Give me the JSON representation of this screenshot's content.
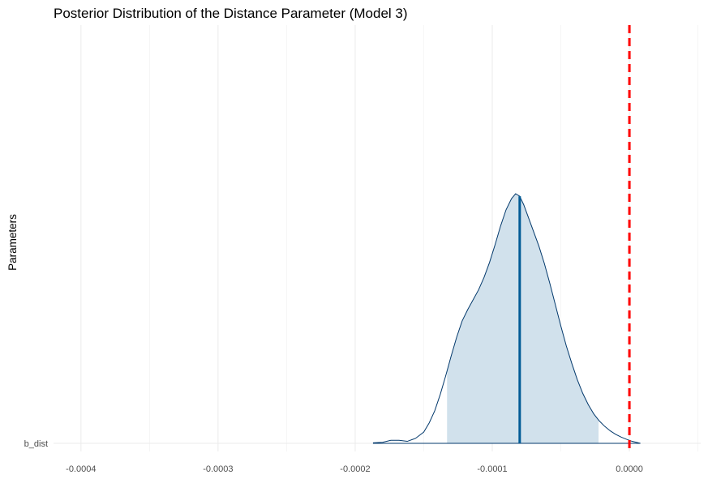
{
  "chart_data": {
    "type": "area",
    "title": "Posterior Distribution of the Distance Parameter (Model 3)",
    "ylabel": "Parameters",
    "xlabel": "",
    "y_category": "b_dist",
    "xlim": [
      -0.00042,
      5.2e-05
    ],
    "x_ticks": [
      -0.0004,
      -0.0003,
      -0.0002,
      -0.0001,
      0.0
    ],
    "x_tick_labels": [
      "-0.0004",
      "-0.0003",
      "-0.0002",
      "-0.0001",
      "0.0000"
    ],
    "density": {
      "x": [
        -0.000187,
        -0.00018,
        -0.000174,
        -0.000168,
        -0.000162,
        -0.000156,
        -0.00015,
        -0.000146,
        -0.000142,
        -0.000138,
        -0.000134,
        -0.00013,
        -0.000126,
        -0.000122,
        -0.000118,
        -0.000114,
        -0.00011,
        -0.000106,
        -0.000102,
        -9.8e-05,
        -9.4e-05,
        -9e-05,
        -8.6e-05,
        -8.3e-05,
        -8e-05,
        -7.7e-05,
        -7.4e-05,
        -7e-05,
        -6.6e-05,
        -6.2e-05,
        -5.8e-05,
        -5.4e-05,
        -5e-05,
        -4.6e-05,
        -4.2e-05,
        -3.8e-05,
        -3.4e-05,
        -3e-05,
        -2.6e-05,
        -2.2e-05,
        -1.8e-05,
        -1.4e-05,
        -1e-05,
        -6e-06,
        -2e-06,
        2e-06,
        5e-06,
        8e-06
      ],
      "y": [
        0.002,
        0.004,
        0.012,
        0.012,
        0.008,
        0.02,
        0.045,
        0.082,
        0.13,
        0.195,
        0.27,
        0.35,
        0.425,
        0.49,
        0.535,
        0.575,
        0.615,
        0.665,
        0.725,
        0.795,
        0.87,
        0.935,
        0.98,
        1.0,
        0.99,
        0.955,
        0.91,
        0.85,
        0.79,
        0.72,
        0.64,
        0.555,
        0.47,
        0.39,
        0.32,
        0.255,
        0.2,
        0.155,
        0.118,
        0.09,
        0.068,
        0.05,
        0.036,
        0.025,
        0.016,
        0.008,
        0.004,
        0.0
      ]
    },
    "interval": [
      -0.000133,
      -2.25e-05
    ],
    "median": -8e-05,
    "reference_line": 0.0,
    "colors": {
      "fill": "#d1e1ec",
      "outline": "#03396c",
      "median": "#005b96",
      "reference": "#ff0000"
    },
    "grid": true,
    "legend": "none"
  }
}
